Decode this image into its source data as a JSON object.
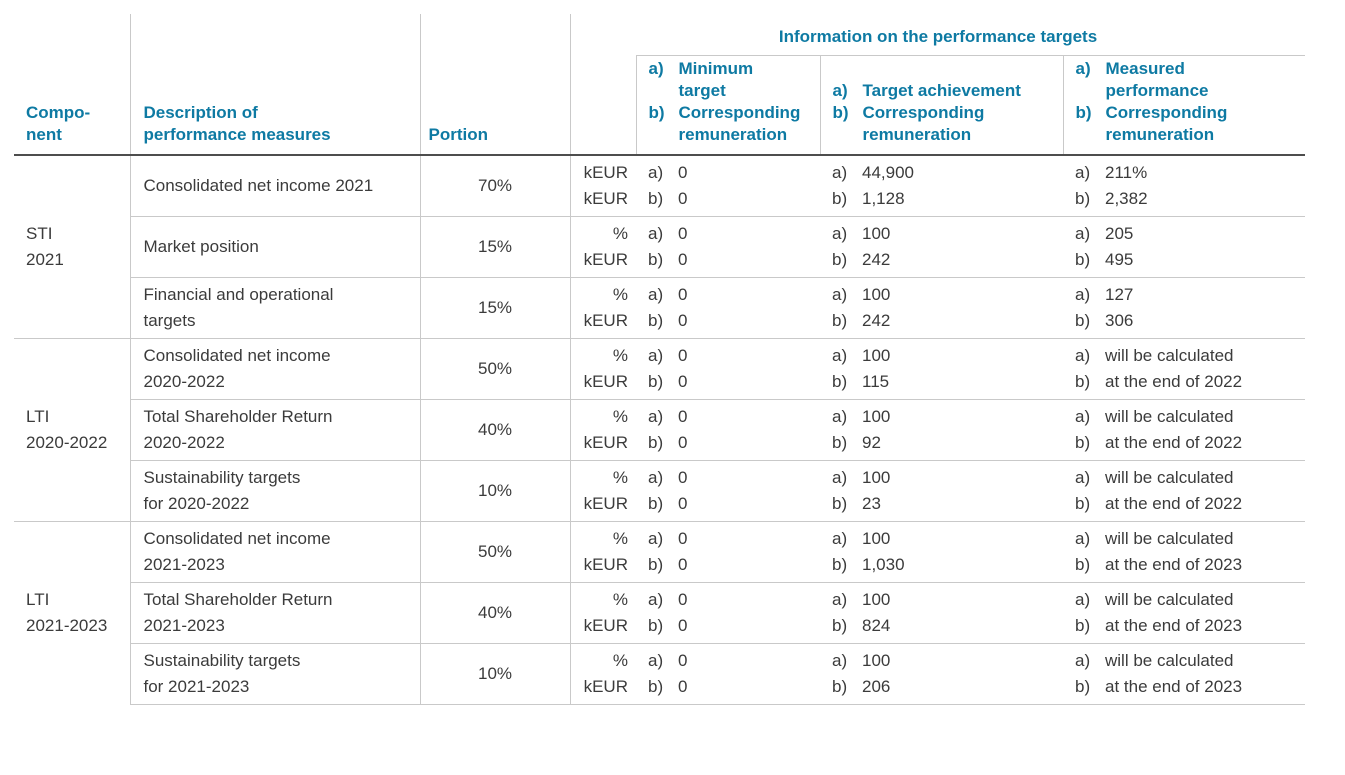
{
  "colors": {
    "accent_teal": "#0e7aa3",
    "body_text": "#3b3b3b",
    "line_light": "#c9c9c9",
    "line_dark": "#4d4d4d"
  },
  "table": {
    "ab_labels": [
      "a)",
      "b)"
    ],
    "headers": {
      "component": "Compo-\nnent",
      "description": "Description of\nperformance measures",
      "portion": "Portion",
      "info_title": "Information on the performance targets",
      "sub_columns": [
        {
          "a": "Minimum\ntarget",
          "b": "Corresponding\nremuneration"
        },
        {
          "a": "Target achievement",
          "b": "Corresponding\nremuneration"
        },
        {
          "a": "Measured\nperformance",
          "b": "Corresponding\nremuneration"
        }
      ]
    },
    "groups": [
      {
        "component": "STI\n2021",
        "rows": [
          {
            "description": "Consolidated net income 2021",
            "portion": "70%",
            "units": "kEUR\nkEUR",
            "minimum_target": {
              "a": "0",
              "b": "0"
            },
            "target_achievement": {
              "a": "44,900",
              "b": "1,128"
            },
            "measured_performance": {
              "a": "211%",
              "b": "2,382"
            }
          },
          {
            "description": "Market position",
            "portion": "15%",
            "units": "%\nkEUR",
            "minimum_target": {
              "a": "0",
              "b": "0"
            },
            "target_achievement": {
              "a": "100",
              "b": "242"
            },
            "measured_performance": {
              "a": "205",
              "b": "495"
            }
          },
          {
            "description": "Financial and operational\ntargets",
            "portion": "15%",
            "units": "%\nkEUR",
            "minimum_target": {
              "a": "0",
              "b": "0"
            },
            "target_achievement": {
              "a": "100",
              "b": "242"
            },
            "measured_performance": {
              "a": "127",
              "b": "306"
            }
          }
        ]
      },
      {
        "component": "LTI\n2020-2022",
        "rows": [
          {
            "description": "Consolidated net income\n2020-2022",
            "portion": "50%",
            "units": "%\nkEUR",
            "minimum_target": {
              "a": "0",
              "b": "0"
            },
            "target_achievement": {
              "a": "100",
              "b": "115"
            },
            "measured_performance": {
              "a": "will be calculated",
              "b": "at the end of 2022"
            }
          },
          {
            "description": "Total Shareholder Return\n2020-2022",
            "portion": "40%",
            "units": "%\nkEUR",
            "minimum_target": {
              "a": "0",
              "b": "0"
            },
            "target_achievement": {
              "a": "100",
              "b": "92"
            },
            "measured_performance": {
              "a": "will be calculated",
              "b": "at the end of 2022"
            }
          },
          {
            "description": "Sustainability targets\nfor 2020-2022",
            "portion": "10%",
            "units": "%\nkEUR",
            "minimum_target": {
              "a": "0",
              "b": "0"
            },
            "target_achievement": {
              "a": "100",
              "b": "23"
            },
            "measured_performance": {
              "a": "will be calculated",
              "b": "at the end of 2022"
            }
          }
        ]
      },
      {
        "component": "LTI\n2021-2023",
        "rows": [
          {
            "description": "Consolidated net income\n2021-2023",
            "portion": "50%",
            "units": "%\nkEUR",
            "minimum_target": {
              "a": "0",
              "b": "0"
            },
            "target_achievement": {
              "a": "100",
              "b": "1,030"
            },
            "measured_performance": {
              "a": "will be calculated",
              "b": "at the end of 2023"
            }
          },
          {
            "description": "Total Shareholder Return\n2021-2023",
            "portion": "40%",
            "units": "%\nkEUR",
            "minimum_target": {
              "a": "0",
              "b": "0"
            },
            "target_achievement": {
              "a": "100",
              "b": "824"
            },
            "measured_performance": {
              "a": "will be calculated",
              "b": "at the end of 2023"
            }
          },
          {
            "description": "Sustainability targets\nfor 2021-2023",
            "portion": "10%",
            "units": "%\nkEUR",
            "minimum_target": {
              "a": "0",
              "b": "0"
            },
            "target_achievement": {
              "a": "100",
              "b": "206"
            },
            "measured_performance": {
              "a": "will be calculated",
              "b": "at the end of 2023"
            }
          }
        ]
      }
    ]
  }
}
